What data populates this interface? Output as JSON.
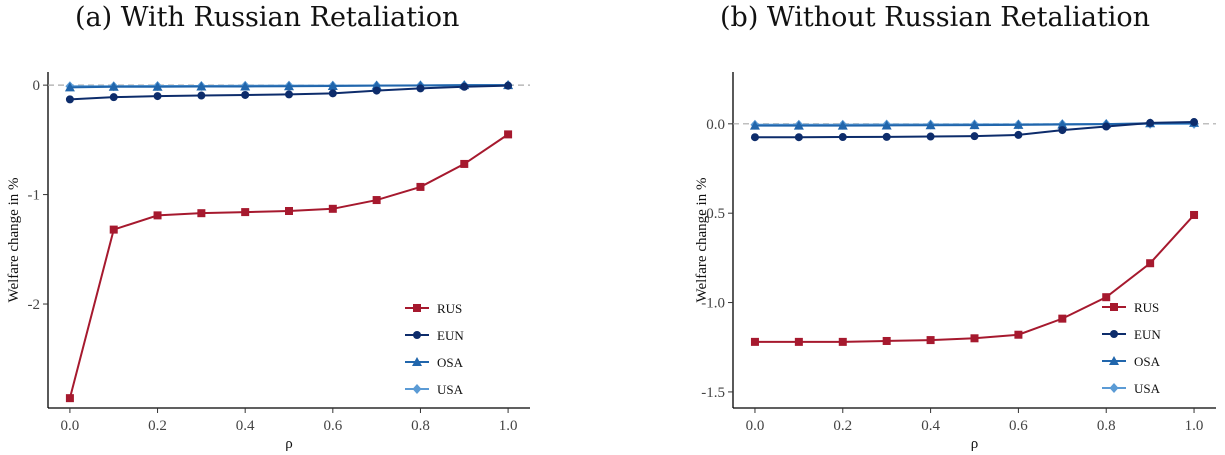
{
  "chart_data": [
    {
      "type": "line",
      "title": "(a) With Russian Retaliation",
      "xlabel": "ρ",
      "ylabel": "Welfare change in %",
      "x": [
        0.0,
        0.1,
        0.2,
        0.3,
        0.4,
        0.5,
        0.6,
        0.7,
        0.8,
        0.9,
        1.0
      ],
      "xlim": [
        -0.05,
        1.05
      ],
      "ylim": [
        -2.95,
        0.12
      ],
      "xticks": [
        0.0,
        0.2,
        0.4,
        0.6,
        0.8,
        1.0
      ],
      "xtick_labels": [
        "0.0",
        "0.2",
        "0.4",
        "0.6",
        "0.8",
        "1.0"
      ],
      "yticks": [
        0,
        -1,
        -2
      ],
      "ytick_labels": [
        "0",
        "-1",
        "-2"
      ],
      "reference_line": 0,
      "grid": false,
      "legend_position": "bottom-right",
      "series": [
        {
          "name": "RUS",
          "color": "#a6192e",
          "marker": "square",
          "values": [
            -2.86,
            -1.32,
            -1.19,
            -1.17,
            -1.16,
            -1.15,
            -1.13,
            -1.05,
            -0.93,
            -0.72,
            -0.45
          ]
        },
        {
          "name": "EUN",
          "color": "#0d2c6b",
          "marker": "circle",
          "values": [
            -0.13,
            -0.11,
            -0.1,
            -0.095,
            -0.09,
            -0.085,
            -0.075,
            -0.05,
            -0.03,
            -0.015,
            -0.005
          ]
        },
        {
          "name": "OSA",
          "color": "#2166ac",
          "marker": "triangle",
          "values": [
            -0.02,
            -0.015,
            -0.015,
            -0.012,
            -0.012,
            -0.01,
            -0.008,
            -0.005,
            -0.003,
            0.0,
            0.0
          ]
        },
        {
          "name": "USA",
          "color": "#5b9bd5",
          "marker": "diamond",
          "values": [
            -0.01,
            -0.01,
            -0.008,
            -0.008,
            -0.006,
            -0.005,
            -0.004,
            -0.003,
            -0.002,
            -0.001,
            0.0
          ]
        }
      ]
    },
    {
      "type": "line",
      "title": "(b) Without Russian Retaliation",
      "xlabel": "ρ",
      "ylabel": "Welfare change in %",
      "x": [
        0.0,
        0.1,
        0.2,
        0.3,
        0.4,
        0.5,
        0.6,
        0.7,
        0.8,
        0.9,
        1.0
      ],
      "xlim": [
        -0.05,
        1.05
      ],
      "ylim": [
        -1.59,
        0.29
      ],
      "xticks": [
        0.0,
        0.2,
        0.4,
        0.6,
        0.8,
        1.0
      ],
      "xtick_labels": [
        "0.0",
        "0.2",
        "0.4",
        "0.6",
        "0.8",
        "1.0"
      ],
      "yticks": [
        0.0,
        -0.5,
        -1.0,
        -1.5
      ],
      "ytick_labels": [
        "0.0",
        "-0.5",
        "-1.0",
        "-1.5"
      ],
      "reference_line": 0,
      "grid": false,
      "legend_position": "bottom-right",
      "series": [
        {
          "name": "RUS",
          "color": "#a6192e",
          "marker": "square",
          "values": [
            -1.22,
            -1.22,
            -1.22,
            -1.215,
            -1.21,
            -1.2,
            -1.18,
            -1.09,
            -0.97,
            -0.78,
            -0.51
          ]
        },
        {
          "name": "EUN",
          "color": "#0d2c6b",
          "marker": "circle",
          "values": [
            -0.075,
            -0.075,
            -0.074,
            -0.073,
            -0.071,
            -0.069,
            -0.062,
            -0.035,
            -0.015,
            0.005,
            0.01
          ]
        },
        {
          "name": "OSA",
          "color": "#2166ac",
          "marker": "triangle",
          "values": [
            -0.01,
            -0.01,
            -0.01,
            -0.009,
            -0.008,
            -0.007,
            -0.006,
            -0.004,
            -0.002,
            0.003,
            0.005
          ]
        },
        {
          "name": "USA",
          "color": "#5b9bd5",
          "marker": "diamond",
          "values": [
            -0.005,
            -0.005,
            -0.005,
            -0.004,
            -0.004,
            -0.003,
            -0.003,
            -0.002,
            -0.001,
            0.0,
            0.0
          ]
        }
      ]
    }
  ]
}
